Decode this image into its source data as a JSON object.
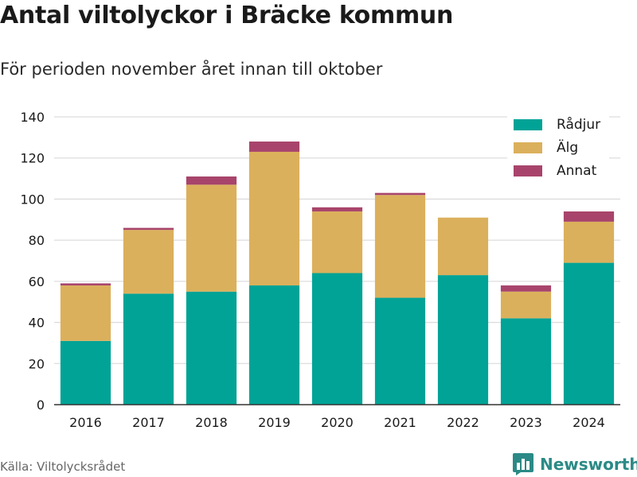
{
  "title": "Antal viltolyckor i Bräcke kommun",
  "subtitle": "För perioden november året innan till oktober",
  "source": "Källa: Viltolycksrådet",
  "brand": {
    "name": "Newsworthy",
    "icon": "bar-chart-logo-icon",
    "color": "#2b8a86"
  },
  "chart_data": {
    "type": "bar",
    "stacked": true,
    "categories": [
      "2016",
      "2017",
      "2018",
      "2019",
      "2020",
      "2021",
      "2022",
      "2023",
      "2024"
    ],
    "series": [
      {
        "name": "Rådjur",
        "color": "#00a396",
        "values": [
          31,
          54,
          55,
          58,
          64,
          52,
          63,
          42,
          69
        ]
      },
      {
        "name": "Älg",
        "color": "#dbb05c",
        "values": [
          27,
          31,
          52,
          65,
          30,
          50,
          28,
          13,
          20
        ]
      },
      {
        "name": "Annat",
        "color": "#a8446b",
        "values": [
          1,
          1,
          4,
          5,
          2,
          1,
          0,
          3,
          5
        ]
      }
    ],
    "ylim": [
      0,
      140
    ],
    "yticks": [
      0,
      20,
      40,
      60,
      80,
      100,
      120,
      140
    ],
    "xlabel": "",
    "ylabel": "",
    "grid": true,
    "legend_position": "top-right"
  }
}
